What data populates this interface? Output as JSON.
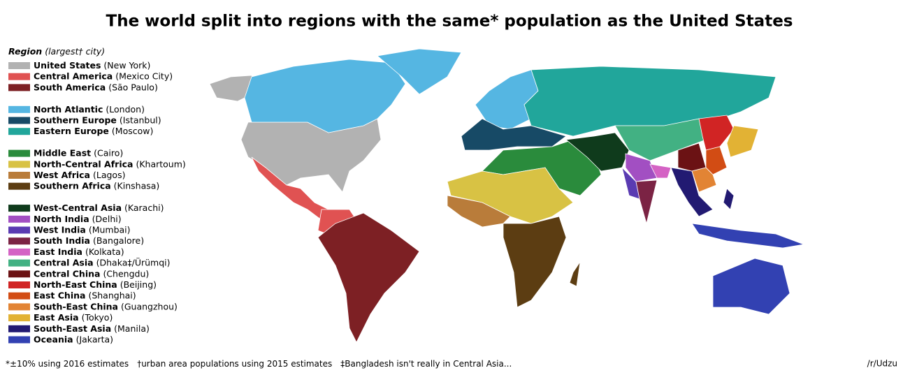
{
  "title": "The world split into regions with the same* population as the United States",
  "legend": {
    "heading": "Region",
    "heading_note": "(largest† city)",
    "regions": [
      {
        "name": "United States",
        "city": "(New York)",
        "color": "#b2b2b2"
      },
      {
        "name": "Central America",
        "city": "(Mexico City)",
        "color": "#e05252"
      },
      {
        "name": "South America",
        "city": "(São Paulo)",
        "color": "#7d2024"
      },
      {
        "name": "North Atlantic",
        "city": "(London)",
        "color": "#55b6e2"
      },
      {
        "name": "Southern Europe",
        "city": "(Istanbul)",
        "color": "#174a66"
      },
      {
        "name": "Eastern Europe",
        "city": "(Moscow)",
        "color": "#21a69b"
      },
      {
        "name": "Middle East",
        "city": "(Cairo)",
        "color": "#2a8b3c"
      },
      {
        "name": "North-Central Africa",
        "city": "(Khartoum)",
        "color": "#d8c244"
      },
      {
        "name": "West Africa",
        "city": "(Lagos)",
        "color": "#b97c3a"
      },
      {
        "name": "Southern Africa",
        "city": "(Kinshasa)",
        "color": "#5c3d12"
      },
      {
        "name": "West-Central Asia",
        "city": "(Karachi)",
        "color": "#0f3b1c"
      },
      {
        "name": "North India",
        "city": "(Delhi)",
        "color": "#a24fc2"
      },
      {
        "name": "West India",
        "city": "(Mumbai)",
        "color": "#5a3bb2"
      },
      {
        "name": "South India",
        "city": "(Bangalore)",
        "color": "#7b2344"
      },
      {
        "name": "East India",
        "city": "(Kolkata)",
        "color": "#d462c4"
      },
      {
        "name": "Central Asia",
        "city": "(Dhaka‡/Ürümqi)",
        "color": "#42b183"
      },
      {
        "name": "Central China",
        "city": "(Chengdu)",
        "color": "#6b1214"
      },
      {
        "name": "North-East China",
        "city": "(Beijing)",
        "color": "#d12424"
      },
      {
        "name": "East China",
        "city": "(Shanghai)",
        "color": "#d24c14"
      },
      {
        "name": "South-East China",
        "city": "(Guangzhou)",
        "color": "#e28434"
      },
      {
        "name": "East Asia",
        "city": "(Tokyo)",
        "color": "#e2b234"
      },
      {
        "name": "South-East Asia",
        "city": "(Manila)",
        "color": "#221a72"
      },
      {
        "name": "Oceania",
        "city": "(Jakarta)",
        "color": "#3241b2"
      }
    ]
  },
  "footnotes": [
    "*±10% using 2016 estimates",
    "†urban area populations using 2015 estimates",
    "‡Bangladesh isn't really in Central Asia..."
  ],
  "credit": "/r/Udzu"
}
